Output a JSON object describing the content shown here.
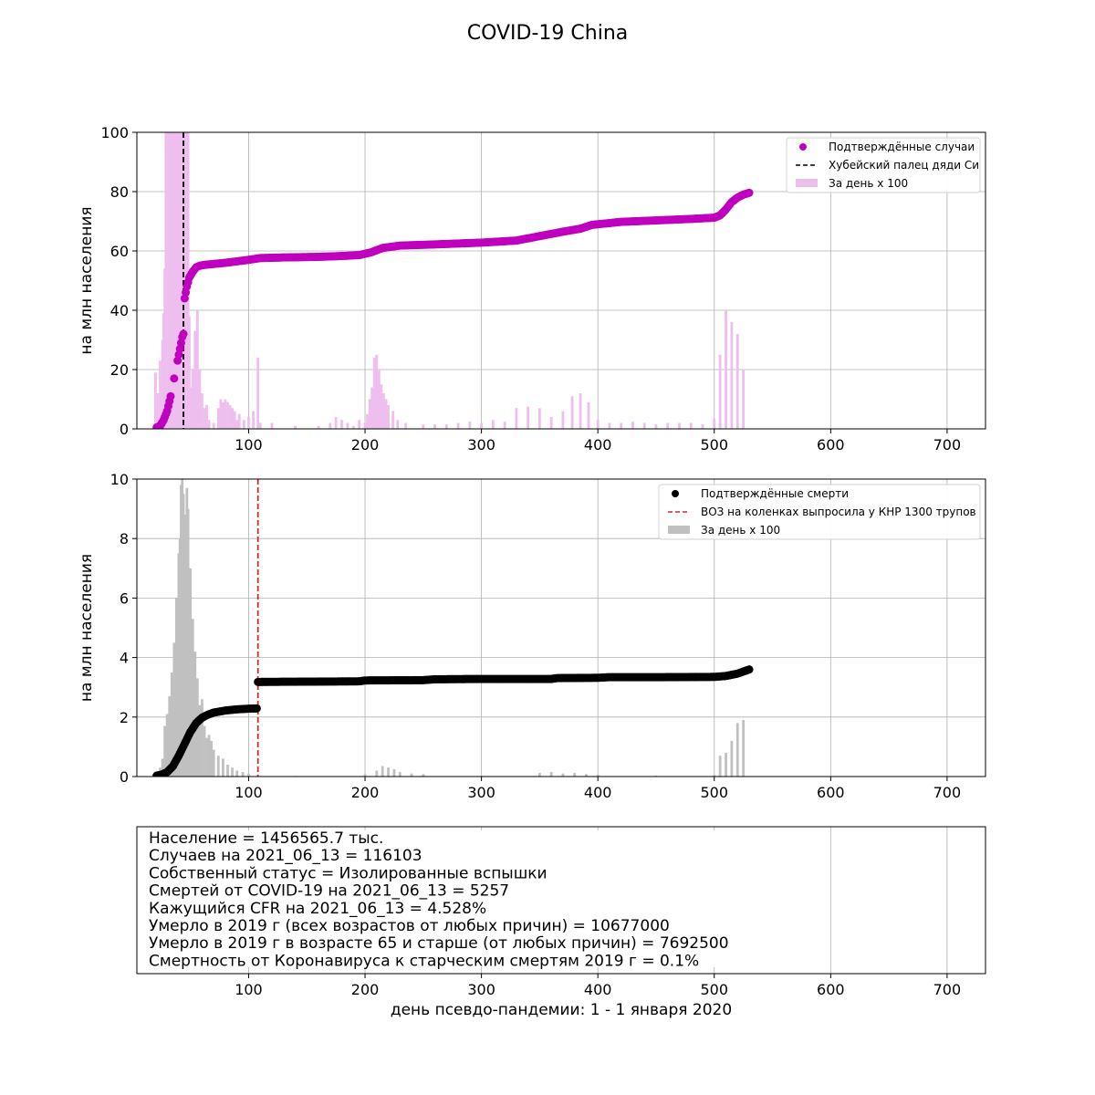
{
  "title": "COVID-19 China",
  "colors": {
    "cases_points": "#bf00bf",
    "cases_bars": "#eebfee",
    "deaths_points": "#000000",
    "deaths_bars": "#c0c0c0",
    "hubei_line": "#000000",
    "who_line": "#d62728",
    "grid": "#b0b0b0"
  },
  "info_box": {
    "lines": [
      "Население = 1456565.7 тыс.",
      "Случаев на 2021_06_13 = 116103",
      "Собственный статус = Изолированные вспышки",
      "Смертей от COVID-19 на 2021_06_13 = 5257",
      "Кажущийся CFR на 2021_06_13 = 4.528%",
      "Умерло в 2019 г (всех возрастов от любых причин) = 10677000",
      "Умерло в 2019 г в возрасте 65 и старше (от любых причин) = 7692500",
      "Смертность от Коронавируса к старческим смертям 2019 г = 0.1%"
    ],
    "xlabel": "день псевдо-пандемии: 1 - 1 января 2020"
  },
  "chart_data": [
    {
      "type": "scatter",
      "name": "cases",
      "ylabel": "на млн населения",
      "xlim": [
        4,
        733
      ],
      "ylim": [
        0,
        100
      ],
      "xticks": [
        100,
        200,
        300,
        400,
        500,
        600,
        700
      ],
      "yticks": [
        0,
        20,
        40,
        60,
        80,
        100
      ],
      "grid": true,
      "legend_position": "top-right",
      "legend": [
        {
          "label": "Подтверждённые случаи",
          "kind": "point"
        },
        {
          "label": "Хубейский палец дяди Си",
          "kind": "dashed-line"
        },
        {
          "label": "За день х 100",
          "kind": "bar"
        }
      ],
      "vline_x": 44,
      "cumulative_points": [
        [
          21,
          0.5
        ],
        [
          24,
          1
        ],
        [
          27,
          3
        ],
        [
          30,
          6
        ],
        [
          33,
          11
        ],
        [
          36,
          17
        ],
        [
          39,
          23
        ],
        [
          41,
          27
        ],
        [
          43,
          31
        ],
        [
          44,
          32
        ],
        [
          45,
          44
        ],
        [
          47,
          48
        ],
        [
          49,
          51
        ],
        [
          52,
          53
        ],
        [
          55,
          54.5
        ],
        [
          58,
          55
        ],
        [
          62,
          55.3
        ],
        [
          70,
          55.6
        ],
        [
          80,
          56
        ],
        [
          100,
          57
        ],
        [
          110,
          57.6
        ],
        [
          130,
          57.8
        ],
        [
          160,
          58
        ],
        [
          180,
          58.3
        ],
        [
          195,
          58.6
        ],
        [
          205,
          59.5
        ],
        [
          215,
          61
        ],
        [
          230,
          61.8
        ],
        [
          260,
          62.2
        ],
        [
          300,
          62.8
        ],
        [
          330,
          63.5
        ],
        [
          350,
          65
        ],
        [
          370,
          66.5
        ],
        [
          385,
          67.5
        ],
        [
          395,
          68.8
        ],
        [
          420,
          69.8
        ],
        [
          450,
          70.3
        ],
        [
          480,
          70.8
        ],
        [
          500,
          71.2
        ],
        [
          505,
          72
        ],
        [
          510,
          74
        ],
        [
          515,
          76.5
        ],
        [
          520,
          78
        ],
        [
          525,
          79
        ],
        [
          530,
          79.6
        ]
      ],
      "daily_bars": [
        [
          20,
          19
        ],
        [
          22,
          12
        ],
        [
          24,
          23
        ],
        [
          26,
          30
        ],
        [
          27,
          39
        ],
        [
          28,
          54
        ],
        [
          29,
          100
        ],
        [
          31,
          100
        ],
        [
          33,
          100
        ],
        [
          35,
          100
        ],
        [
          37,
          100
        ],
        [
          39,
          100
        ],
        [
          41,
          100
        ],
        [
          43,
          100
        ],
        [
          45,
          100
        ],
        [
          47,
          100
        ],
        [
          48,
          100
        ],
        [
          49,
          38
        ],
        [
          50,
          14
        ],
        [
          52,
          20
        ],
        [
          54,
          33
        ],
        [
          56,
          40
        ],
        [
          58,
          20
        ],
        [
          60,
          12
        ],
        [
          62,
          7
        ],
        [
          64,
          8
        ],
        [
          66,
          3
        ],
        [
          70,
          2
        ],
        [
          74,
          7
        ],
        [
          76,
          10
        ],
        [
          78,
          9
        ],
        [
          80,
          10
        ],
        [
          82,
          9
        ],
        [
          84,
          8
        ],
        [
          86,
          7
        ],
        [
          88,
          6
        ],
        [
          90,
          3
        ],
        [
          92,
          5
        ],
        [
          96,
          3
        ],
        [
          100,
          4
        ],
        [
          104,
          6
        ],
        [
          108,
          24
        ],
        [
          110,
          2
        ],
        [
          120,
          2
        ],
        [
          140,
          1
        ],
        [
          160,
          1
        ],
        [
          170,
          2
        ],
        [
          175,
          4
        ],
        [
          180,
          3
        ],
        [
          185,
          2
        ],
        [
          190,
          1
        ],
        [
          195,
          3
        ],
        [
          200,
          2
        ],
        [
          202,
          5
        ],
        [
          204,
          10
        ],
        [
          206,
          14
        ],
        [
          208,
          24
        ],
        [
          210,
          25
        ],
        [
          212,
          20
        ],
        [
          214,
          15
        ],
        [
          216,
          12
        ],
        [
          218,
          10
        ],
        [
          220,
          8
        ],
        [
          224,
          6
        ],
        [
          228,
          3
        ],
        [
          235,
          2
        ],
        [
          250,
          1.5
        ],
        [
          260,
          1.5
        ],
        [
          270,
          1.5
        ],
        [
          280,
          2
        ],
        [
          290,
          2.5
        ],
        [
          300,
          2
        ],
        [
          310,
          3
        ],
        [
          320,
          2.5
        ],
        [
          330,
          7
        ],
        [
          340,
          7.5
        ],
        [
          350,
          7
        ],
        [
          360,
          4
        ],
        [
          370,
          6
        ],
        [
          378,
          11
        ],
        [
          385,
          12
        ],
        [
          392,
          9
        ],
        [
          400,
          3
        ],
        [
          410,
          2
        ],
        [
          420,
          2
        ],
        [
          430,
          2.5
        ],
        [
          440,
          2
        ],
        [
          450,
          1.5
        ],
        [
          460,
          2
        ],
        [
          470,
          2
        ],
        [
          480,
          2
        ],
        [
          490,
          1.5
        ],
        [
          500,
          3.5
        ],
        [
          505,
          25
        ],
        [
          510,
          40
        ],
        [
          515,
          36
        ],
        [
          520,
          32
        ],
        [
          525,
          20
        ]
      ]
    },
    {
      "type": "scatter",
      "name": "deaths",
      "ylabel": "на млн населения",
      "xlim": [
        4,
        733
      ],
      "ylim": [
        0,
        10
      ],
      "xticks": [
        100,
        200,
        300,
        400,
        500,
        600,
        700
      ],
      "yticks": [
        0,
        2,
        4,
        6,
        8,
        10
      ],
      "grid": true,
      "legend_position": "top-right",
      "legend": [
        {
          "label": "Подтверждённые смерти",
          "kind": "point"
        },
        {
          "label": "ВОЗ на коленках выпросила у КНР 1300 трупов",
          "kind": "dashed-line"
        },
        {
          "label": "За день х 100",
          "kind": "bar"
        }
      ],
      "vline_x": 108,
      "cumulative_points": [
        [
          21,
          0.03
        ],
        [
          25,
          0.06
        ],
        [
          30,
          0.15
        ],
        [
          35,
          0.35
        ],
        [
          40,
          0.7
        ],
        [
          45,
          1.1
        ],
        [
          50,
          1.5
        ],
        [
          55,
          1.8
        ],
        [
          60,
          1.98
        ],
        [
          65,
          2.08
        ],
        [
          70,
          2.15
        ],
        [
          80,
          2.22
        ],
        [
          90,
          2.26
        ],
        [
          100,
          2.28
        ],
        [
          107,
          2.29
        ],
        [
          108,
          3.18
        ],
        [
          150,
          3.19
        ],
        [
          195,
          3.2
        ],
        [
          200,
          3.23
        ],
        [
          250,
          3.24
        ],
        [
          260,
          3.27
        ],
        [
          300,
          3.28
        ],
        [
          360,
          3.28
        ],
        [
          365,
          3.31
        ],
        [
          400,
          3.32
        ],
        [
          410,
          3.34
        ],
        [
          450,
          3.34
        ],
        [
          500,
          3.35
        ],
        [
          510,
          3.38
        ],
        [
          520,
          3.46
        ],
        [
          530,
          3.6
        ]
      ],
      "daily_bars": [
        [
          21,
          0.1
        ],
        [
          24,
          0.3
        ],
        [
          26,
          0.6
        ],
        [
          28,
          1.7
        ],
        [
          30,
          2.1
        ],
        [
          32,
          2.7
        ],
        [
          34,
          3.5
        ],
        [
          36,
          4.5
        ],
        [
          38,
          6
        ],
        [
          40,
          7.5
        ],
        [
          41,
          8
        ],
        [
          42,
          9.8
        ],
        [
          43,
          10
        ],
        [
          44,
          9.5
        ],
        [
          45,
          8.8
        ],
        [
          46,
          7.4
        ],
        [
          47,
          9.7
        ],
        [
          48,
          9
        ],
        [
          50,
          7
        ],
        [
          52,
          5.3
        ],
        [
          54,
          4.2
        ],
        [
          56,
          3.3
        ],
        [
          58,
          2.4
        ],
        [
          60,
          2.6
        ],
        [
          62,
          1.7
        ],
        [
          64,
          1.3
        ],
        [
          66,
          1.4
        ],
        [
          68,
          1.2
        ],
        [
          70,
          0.9
        ],
        [
          74,
          0.7
        ],
        [
          78,
          0.6
        ],
        [
          82,
          0.4
        ],
        [
          86,
          0.3
        ],
        [
          90,
          0.2
        ],
        [
          95,
          0.15
        ],
        [
          100,
          0.1
        ],
        [
          140,
          0.02
        ],
        [
          200,
          0.08
        ],
        [
          210,
          0.2
        ],
        [
          215,
          0.35
        ],
        [
          220,
          0.3
        ],
        [
          225,
          0.25
        ],
        [
          230,
          0.15
        ],
        [
          240,
          0.1
        ],
        [
          250,
          0.08
        ],
        [
          300,
          0.02
        ],
        [
          350,
          0.12
        ],
        [
          360,
          0.15
        ],
        [
          370,
          0.1
        ],
        [
          380,
          0.12
        ],
        [
          390,
          0.08
        ],
        [
          400,
          0.06
        ],
        [
          450,
          0.03
        ],
        [
          500,
          0.05
        ],
        [
          505,
          0.7
        ],
        [
          510,
          0.8
        ],
        [
          515,
          1.2
        ],
        [
          520,
          1.8
        ],
        [
          525,
          1.9
        ]
      ]
    }
  ],
  "axes_extra": {
    "info_panel_xticks": [
      100,
      200,
      300,
      400,
      500,
      600,
      700
    ]
  }
}
